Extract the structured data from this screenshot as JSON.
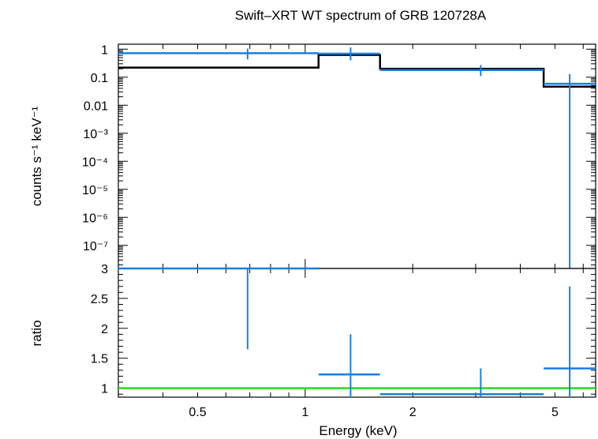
{
  "chart_data": [
    {
      "type": "line",
      "title": "Swift–XRT WT spectrum of GRB 120728A",
      "ylabel": "counts s⁻¹ keV⁻¹",
      "xlabel": "",
      "xscale": "log",
      "yscale": "log",
      "xlim": [
        0.3,
        6.5
      ],
      "ylim": [
        1.5e-08,
        1.5
      ],
      "yticks": [
        {
          "value": 1,
          "label": "1"
        },
        {
          "value": 0.1,
          "label": "0.1"
        },
        {
          "value": 0.01,
          "label": "0.01"
        },
        {
          "value": 0.001,
          "label": "10⁻³"
        },
        {
          "value": 0.0001,
          "label": "10⁻⁴"
        },
        {
          "value": 1e-05,
          "label": "10⁻⁵"
        },
        {
          "value": 1e-06,
          "label": "10⁻⁶"
        },
        {
          "value": 1e-07,
          "label": "10⁻⁷"
        }
      ],
      "data": [
        {
          "x": 0.69,
          "xlo": 0.3,
          "xhi": 1.09,
          "y": 0.72,
          "ylo": 0.43,
          "yhi": 1.05
        },
        {
          "x": 1.34,
          "xlo": 1.09,
          "xhi": 1.62,
          "y": 0.69,
          "ylo": 0.4,
          "yhi": 1.15
        },
        {
          "x": 3.1,
          "xlo": 1.62,
          "xhi": 4.65,
          "y": 0.18,
          "ylo": 0.11,
          "yhi": 0.27
        },
        {
          "x": 5.5,
          "xlo": 4.65,
          "xhi": 6.5,
          "y": 0.058,
          "ylo": 1.5e-08,
          "yhi": 0.13
        }
      ],
      "model": [
        {
          "xlo": 0.3,
          "xhi": 1.09,
          "y": 0.22
        },
        {
          "xlo": 1.09,
          "xhi": 1.62,
          "y": 0.62
        },
        {
          "xlo": 1.62,
          "xhi": 4.65,
          "y": 0.2
        },
        {
          "xlo": 4.65,
          "xhi": 6.5,
          "y": 0.046
        }
      ],
      "colors": {
        "data": "#1a7fe0",
        "model": "#000000"
      }
    },
    {
      "type": "line",
      "xlabel": "Energy (keV)",
      "ylabel": "ratio",
      "xscale": "log",
      "xlim": [
        0.3,
        6.5
      ],
      "ylim": [
        0.85,
        3.0
      ],
      "xticks": [
        {
          "value": 0.5,
          "label": "0.5"
        },
        {
          "value": 1,
          "label": "1"
        },
        {
          "value": 2,
          "label": "2"
        },
        {
          "value": 5,
          "label": "5"
        }
      ],
      "yticks": [
        {
          "value": 1,
          "label": "1"
        },
        {
          "value": 1.5,
          "label": "1.5"
        },
        {
          "value": 2,
          "label": "2"
        },
        {
          "value": 2.5,
          "label": "2.5"
        },
        {
          "value": 3,
          "label": "3"
        }
      ],
      "data": [
        {
          "x": 0.69,
          "xlo": 0.3,
          "xhi": 1.09,
          "y": 3.0,
          "ylo": 1.65,
          "yhi": 3.0
        },
        {
          "x": 1.34,
          "xlo": 1.09,
          "xhi": 1.62,
          "y": 1.23,
          "ylo": 0.85,
          "yhi": 1.9
        },
        {
          "x": 3.1,
          "xlo": 1.62,
          "xhi": 4.65,
          "y": 0.9,
          "ylo": 0.85,
          "yhi": 1.33
        },
        {
          "x": 5.5,
          "xlo": 4.65,
          "xhi": 6.5,
          "y": 1.33,
          "ylo": 0.85,
          "yhi": 2.7
        }
      ],
      "reference_line": 1,
      "colors": {
        "data": "#1a7fe0",
        "reference": "#22dd22"
      }
    }
  ]
}
